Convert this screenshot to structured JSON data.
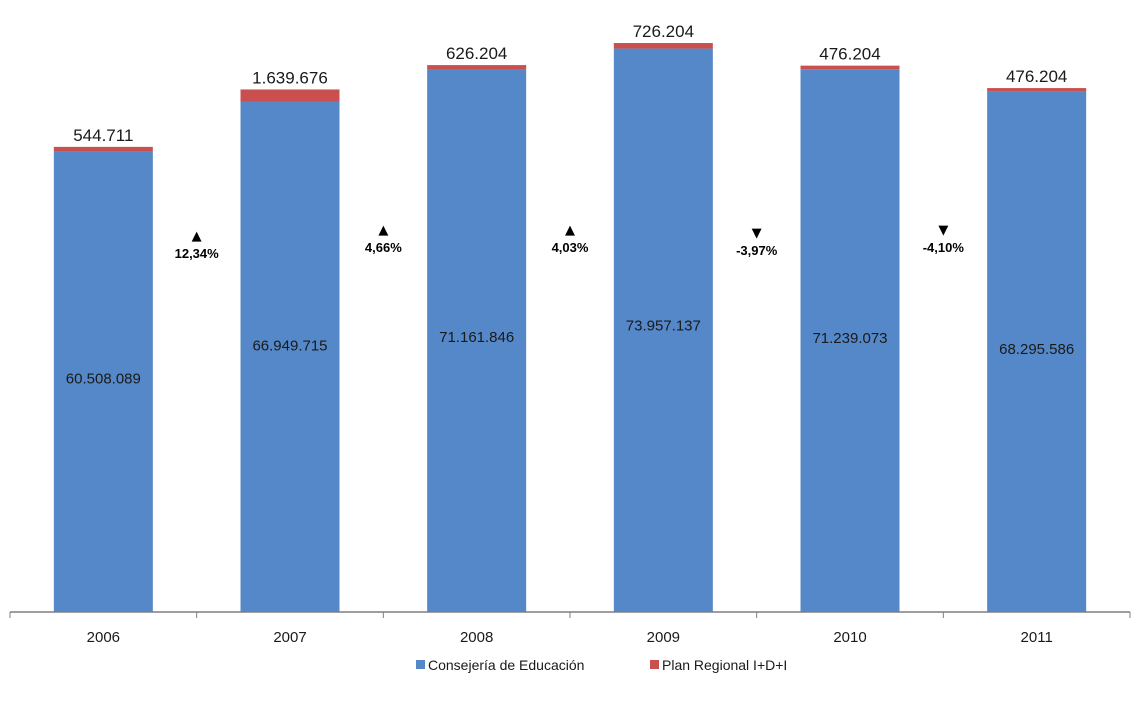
{
  "chart_data": {
    "type": "bar",
    "stacked": true,
    "categories": [
      "2006",
      "2007",
      "2008",
      "2009",
      "2010",
      "2011"
    ],
    "series": [
      {
        "name": "Consejería de Educación",
        "color": "#5588c8",
        "values": [
          60508089,
          66949715,
          71161846,
          73957137,
          71239073,
          68295586
        ],
        "labels": [
          "60.508.089",
          "66.949.715",
          "71.161.846",
          "73.957.137",
          "71.239.073",
          "68.295.586"
        ]
      },
      {
        "name": "Plan Regional I+D+I",
        "color": "#c9504f",
        "values": [
          544711,
          1639676,
          626204,
          726204,
          476204,
          476204
        ],
        "labels": [
          "544.711",
          "1.639.676",
          "626.204",
          "726.204",
          "476.204",
          "476.204"
        ]
      }
    ],
    "changes": [
      {
        "label": "12,34%",
        "direction": "up"
      },
      {
        "label": "4,66%",
        "direction": "up"
      },
      {
        "label": "4,03%",
        "direction": "up"
      },
      {
        "label": "-3,97%",
        "direction": "down"
      },
      {
        "label": "-4,10%",
        "direction": "down"
      }
    ],
    "ylim": [
      0,
      78000000
    ],
    "grid": false,
    "legend_position": "bottom",
    "title": "",
    "xlabel": "",
    "ylabel": ""
  }
}
